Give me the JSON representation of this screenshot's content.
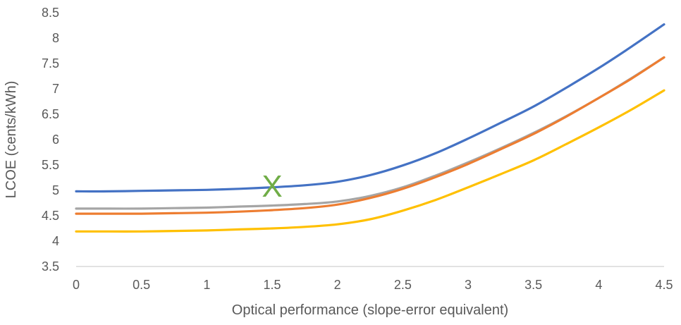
{
  "chart_data": {
    "type": "line",
    "title": "",
    "xlabel": "Optical performance (slope-error equivalent)",
    "ylabel": "LCOE (cents/kWh)",
    "xlim": [
      0,
      4.5
    ],
    "ylim": [
      3.5,
      8.5
    ],
    "x_ticks": [
      "0",
      "0.5",
      "1",
      "1.5",
      "2",
      "2.5",
      "3",
      "3.5",
      "4",
      "4.5"
    ],
    "y_ticks": [
      "3.5",
      "4",
      "4.5",
      "5",
      "5.5",
      "6",
      "6.5",
      "7",
      "7.5",
      "8",
      "8.5"
    ],
    "grid": false,
    "legend": "none",
    "x": [
      0,
      0.25,
      0.5,
      0.75,
      1,
      1.25,
      1.5,
      1.75,
      2,
      2.25,
      2.5,
      2.75,
      3,
      3.25,
      3.5,
      3.75,
      4,
      4.25,
      4.5
    ],
    "series": [
      {
        "color": "#4472C4",
        "values": [
          4.98,
          4.98,
          4.99,
          5.0,
          5.01,
          5.03,
          5.06,
          5.1,
          5.17,
          5.3,
          5.49,
          5.73,
          6.02,
          6.33,
          6.65,
          7.02,
          7.41,
          7.83,
          8.27
        ]
      },
      {
        "color": "#A5A5A5",
        "values": [
          4.64,
          4.64,
          4.64,
          4.65,
          4.66,
          4.68,
          4.7,
          4.73,
          4.78,
          4.89,
          5.06,
          5.29,
          5.55,
          5.83,
          6.13,
          6.46,
          6.82,
          7.21,
          7.62
        ]
      },
      {
        "color": "#ED7D31",
        "values": [
          4.54,
          4.54,
          4.54,
          4.55,
          4.56,
          4.58,
          4.61,
          4.65,
          4.72,
          4.85,
          5.03,
          5.26,
          5.52,
          5.81,
          6.11,
          6.45,
          6.82,
          7.2,
          7.62
        ]
      },
      {
        "color": "#FFC000",
        "values": [
          4.19,
          4.19,
          4.19,
          4.2,
          4.21,
          4.23,
          4.25,
          4.28,
          4.33,
          4.43,
          4.6,
          4.81,
          5.06,
          5.32,
          5.59,
          5.91,
          6.24,
          6.59,
          6.97
        ]
      }
    ],
    "annotations": [
      {
        "text": "X",
        "x": 1.5,
        "y": 5.07,
        "color": "#70AD47"
      }
    ]
  }
}
